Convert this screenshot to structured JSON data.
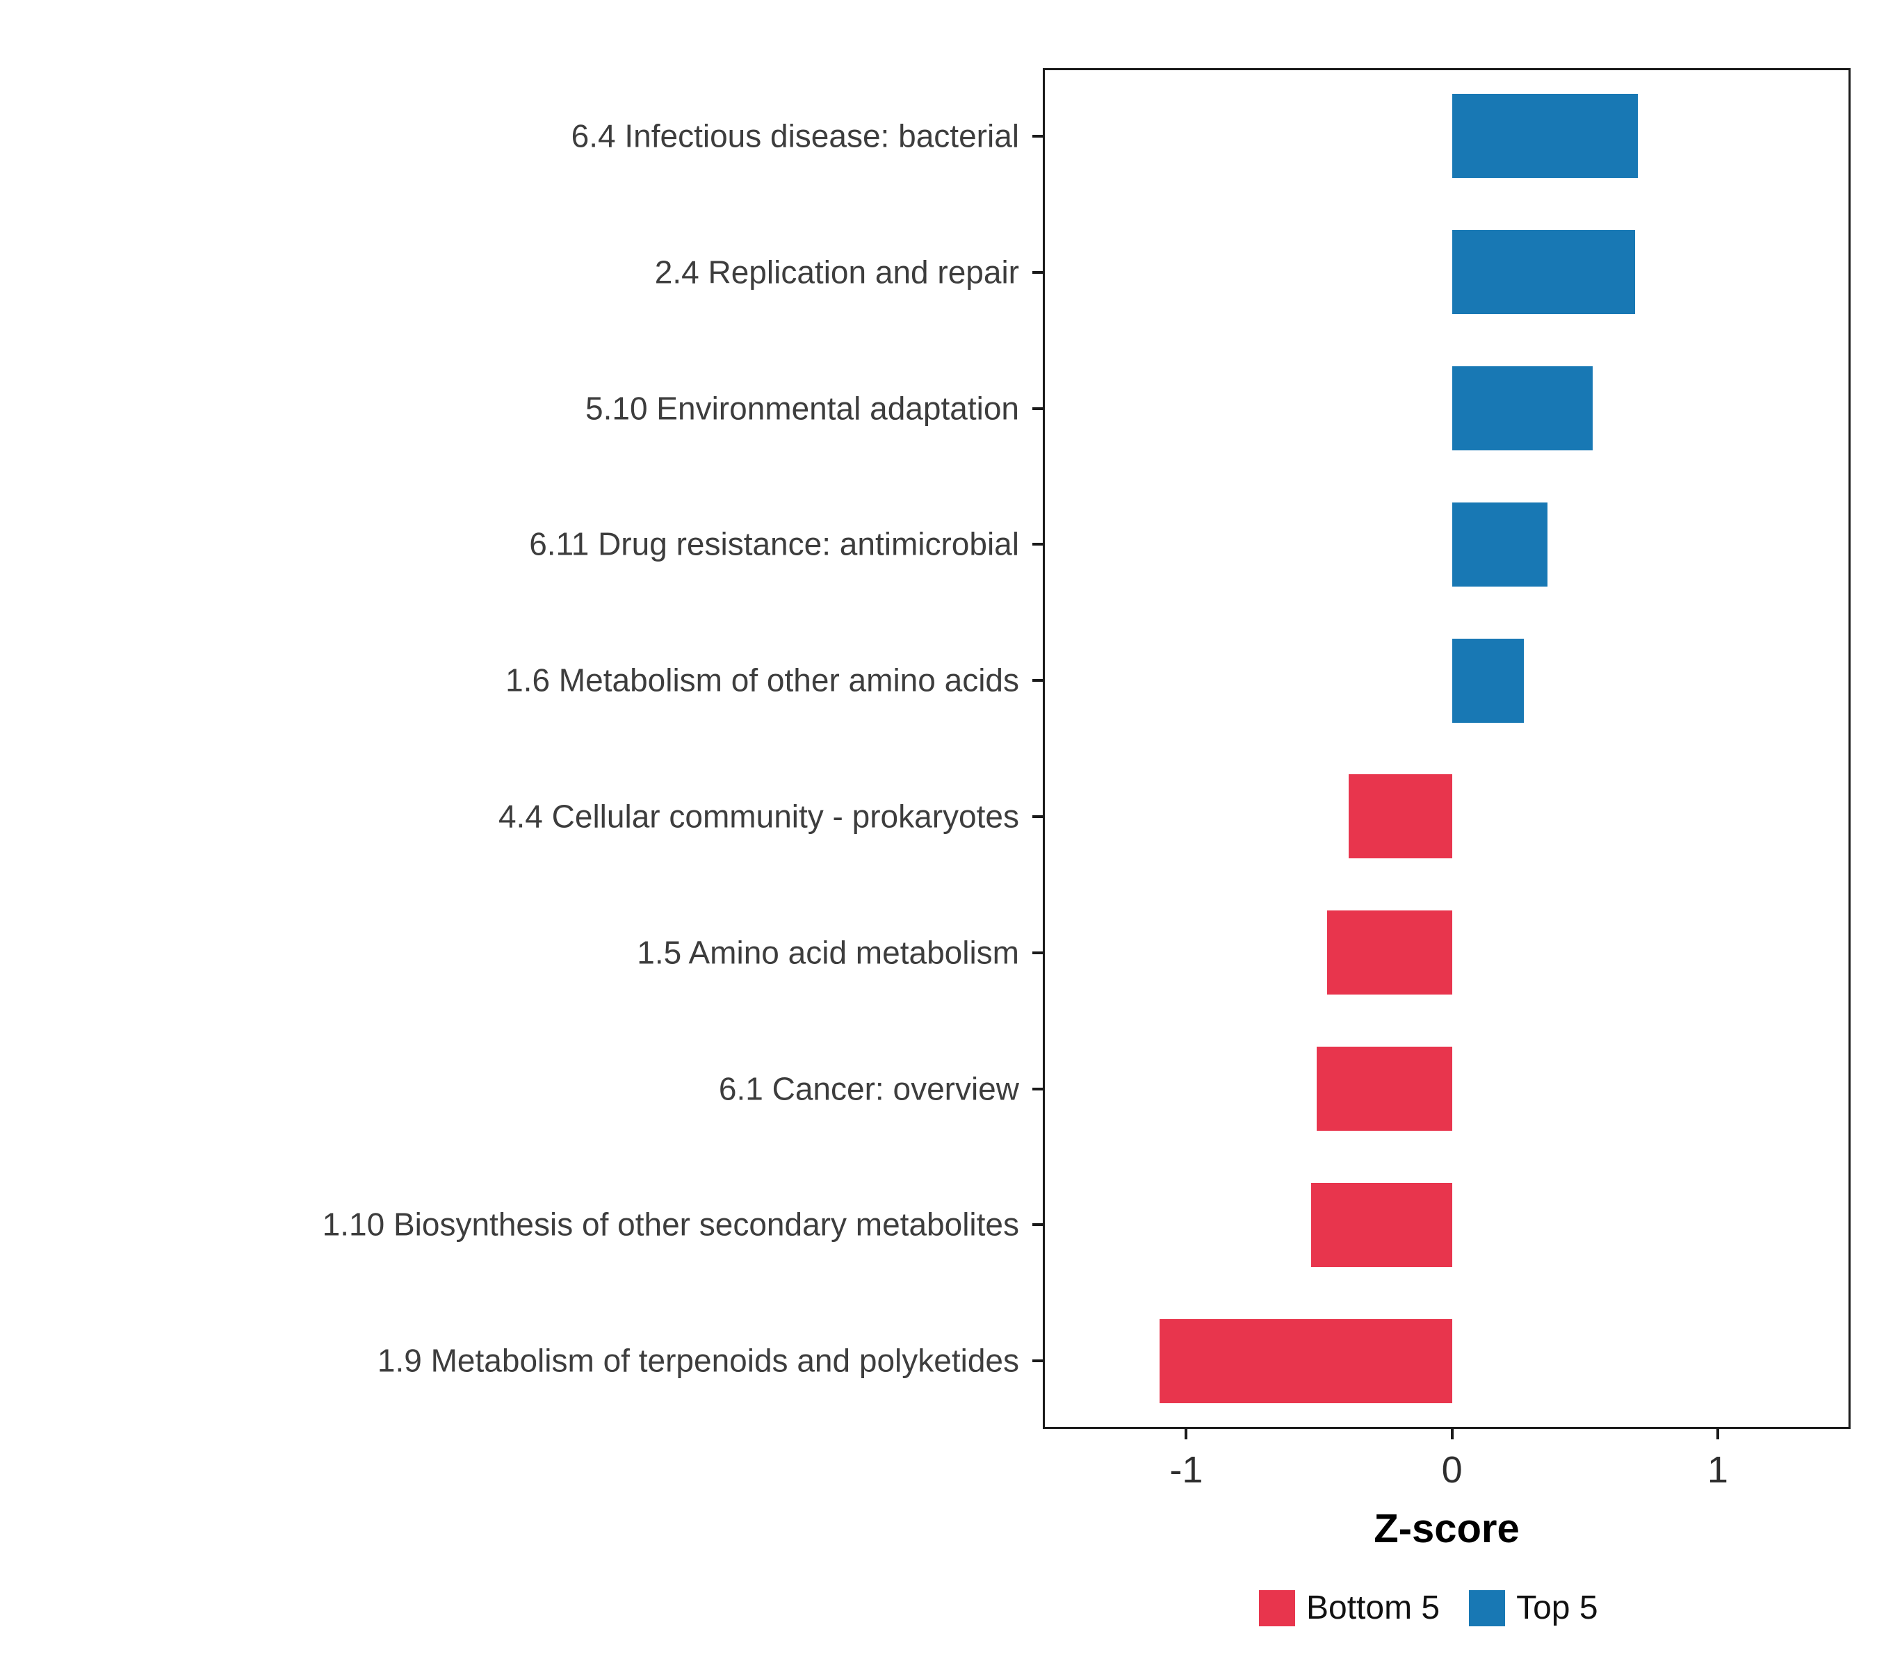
{
  "chart_data": {
    "type": "bar",
    "orientation": "horizontal",
    "title": "",
    "xlabel": "Z-score",
    "ylabel": "",
    "xlim": [
      -1.54,
      1.5
    ],
    "x_ticks": [
      -1,
      0,
      1
    ],
    "grid": false,
    "categories": [
      "6.4 Infectious disease: bacterial",
      "2.4 Replication and repair",
      "5.10 Environmental adaptation",
      "6.11 Drug resistance: antimicrobial",
      "1.6 Metabolism of other amino acids",
      "4.4 Cellular community - prokaryotes",
      "1.5 Amino acid metabolism",
      "6.1 Cancer: overview",
      "1.10 Biosynthesis of other secondary metabolites",
      "1.9 Metabolism of terpenoids and polyketides"
    ],
    "values": [
      0.7,
      0.69,
      0.53,
      0.36,
      0.27,
      -0.39,
      -0.47,
      -0.51,
      -0.53,
      -1.1
    ],
    "groups": [
      "Top 5",
      "Top 5",
      "Top 5",
      "Top 5",
      "Top 5",
      "Bottom 5",
      "Bottom 5",
      "Bottom 5",
      "Bottom 5",
      "Bottom 5"
    ],
    "colors": {
      "Bottom 5": "#e8354d",
      "Top 5": "#1878b4"
    },
    "legend": {
      "position": "bottom",
      "entries": [
        {
          "label": "Bottom 5",
          "color": "#e8354d"
        },
        {
          "label": "Top 5",
          "color": "#1878b4"
        }
      ]
    }
  }
}
